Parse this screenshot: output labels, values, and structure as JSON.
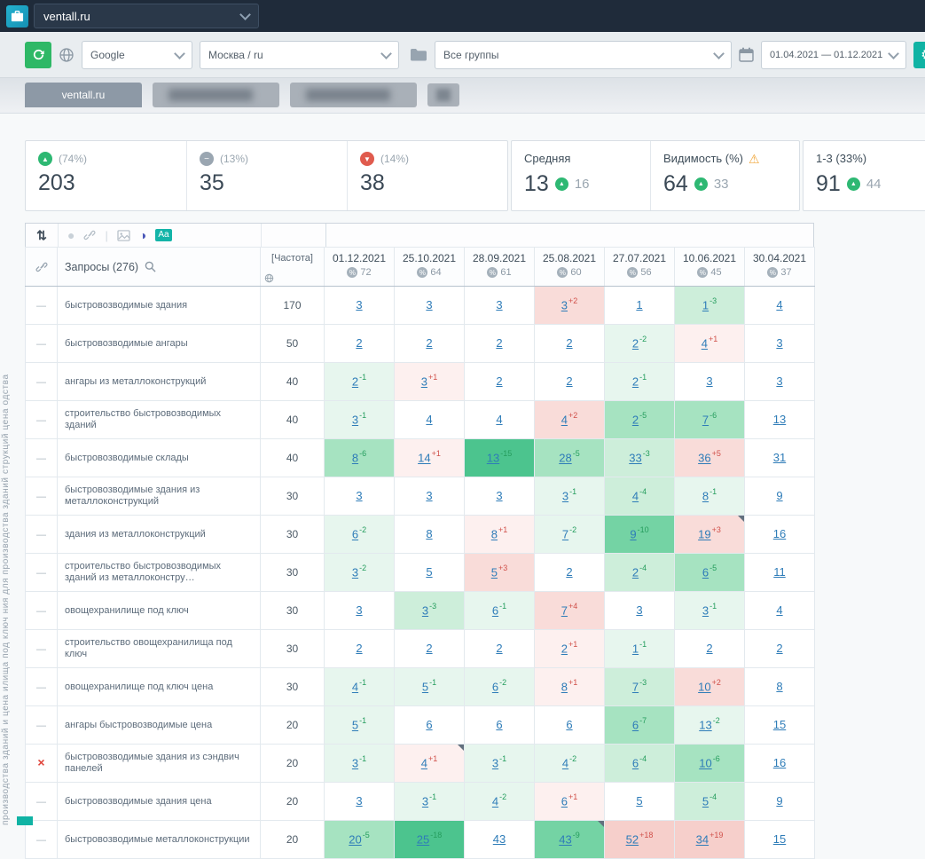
{
  "topbar": {
    "project": "ventall.ru"
  },
  "toolbar": {
    "search_engine": "Google",
    "region": "Москва / ru",
    "groups": "Все группы",
    "date_range": "01.04.2021 — 01.12.2021"
  },
  "tabs": {
    "active": "ventall.ru"
  },
  "icons": {
    "sort": "⇅",
    "circle": "●",
    "divider": "|",
    "half": "◑",
    "aa": "Aa",
    "gear": "⚙",
    "warning": "⚠",
    "percent": "%",
    "up": "▲",
    "down": "▼",
    "flat": "−",
    "handle": "—",
    "removed": "×"
  },
  "colors": {
    "accent_teal": "#10b3a4",
    "refresh_green": "#2eb866",
    "up_green": "#2eb873",
    "down_red": "#e05b4e",
    "flat_gray": "#9aa6b1",
    "link_blue": "#2e7cb8",
    "delta_green": "#259d5d",
    "delta_red": "#d0504a"
  },
  "summary": {
    "cards": [
      {
        "kind": "up",
        "percent": "(74%)",
        "value": "203"
      },
      {
        "kind": "flat",
        "percent": "(13%)",
        "value": "35"
      },
      {
        "kind": "down",
        "percent": "(14%)",
        "value": "38"
      },
      {
        "kind": "metric",
        "label": "Средняя",
        "value": "13",
        "delta": "16"
      },
      {
        "kind": "metric",
        "label": "Видимость (%)",
        "warning": true,
        "value": "64",
        "delta": "33"
      },
      {
        "kind": "metric",
        "label": "1-3 (33%)",
        "value": "91",
        "delta": "44"
      }
    ]
  },
  "table": {
    "queries_header": "Запросы (276)",
    "frequency_header": "[Частота]",
    "columns": [
      {
        "date": "01.12.2021",
        "percent": "72"
      },
      {
        "date": "25.10.2021",
        "percent": "64"
      },
      {
        "date": "28.09.2021",
        "percent": "61"
      },
      {
        "date": "25.08.2021",
        "percent": "60"
      },
      {
        "date": "27.07.2021",
        "percent": "56"
      },
      {
        "date": "10.06.2021",
        "percent": "45"
      },
      {
        "date": "30.04.2021",
        "percent": "37"
      }
    ],
    "rows": [
      {
        "keyword": "быстровозводимые здания",
        "frequency": "170",
        "marker": "dash",
        "cells": [
          {
            "p": "3"
          },
          {
            "p": "3"
          },
          {
            "p": "3"
          },
          {
            "p": "3",
            "d": "+2",
            "bg": "r2"
          },
          {
            "p": "1"
          },
          {
            "p": "1",
            "d": "-3",
            "bg": "g2"
          },
          {
            "p": "4"
          }
        ]
      },
      {
        "keyword": "быстровозводимые ангары",
        "frequency": "50",
        "marker": "dash",
        "cells": [
          {
            "p": "2"
          },
          {
            "p": "2"
          },
          {
            "p": "2"
          },
          {
            "p": "2"
          },
          {
            "p": "2",
            "d": "-2",
            "bg": "g1"
          },
          {
            "p": "4",
            "d": "+1",
            "bg": "r1"
          },
          {
            "p": "3"
          }
        ]
      },
      {
        "keyword": "ангары из металлоконструкций",
        "frequency": "40",
        "marker": "dash",
        "cells": [
          {
            "p": "2",
            "d": "-1",
            "bg": "g1"
          },
          {
            "p": "3",
            "d": "+1",
            "bg": "r1"
          },
          {
            "p": "2"
          },
          {
            "p": "2"
          },
          {
            "p": "2",
            "d": "-1",
            "bg": "g1"
          },
          {
            "p": "3"
          },
          {
            "p": "3"
          }
        ]
      },
      {
        "keyword": "строительство быстровозводимых зданий",
        "frequency": "40",
        "marker": "dash",
        "cells": [
          {
            "p": "3",
            "d": "-1",
            "bg": "g1"
          },
          {
            "p": "4"
          },
          {
            "p": "4"
          },
          {
            "p": "4",
            "d": "+2",
            "bg": "r2"
          },
          {
            "p": "2",
            "d": "-5",
            "bg": "g3"
          },
          {
            "p": "7",
            "d": "-6",
            "bg": "g3"
          },
          {
            "p": "13"
          }
        ]
      },
      {
        "keyword": "быстровозводимые склады",
        "frequency": "40",
        "marker": "dash",
        "cells": [
          {
            "p": "8",
            "d": "-6",
            "bg": "g3"
          },
          {
            "p": "14",
            "d": "+1",
            "bg": "r1"
          },
          {
            "p": "13",
            "d": "-15",
            "bg": "g5"
          },
          {
            "p": "28",
            "d": "-5",
            "bg": "g3"
          },
          {
            "p": "33",
            "d": "-3",
            "bg": "g2"
          },
          {
            "p": "36",
            "d": "+5",
            "bg": "r2"
          },
          {
            "p": "31"
          }
        ]
      },
      {
        "keyword": "быстровозводимые здания из металлоконструкций",
        "frequency": "30",
        "marker": "dash",
        "cells": [
          {
            "p": "3"
          },
          {
            "p": "3"
          },
          {
            "p": "3"
          },
          {
            "p": "3",
            "d": "-1",
            "bg": "g1"
          },
          {
            "p": "4",
            "d": "-4",
            "bg": "g2"
          },
          {
            "p": "8",
            "d": "-1",
            "bg": "g1"
          },
          {
            "p": "9"
          }
        ]
      },
      {
        "keyword": "здания из металлоконструкций",
        "frequency": "30",
        "marker": "dash",
        "cells": [
          {
            "p": "6",
            "d": "-2",
            "bg": "g1"
          },
          {
            "p": "8"
          },
          {
            "p": "8",
            "d": "+1",
            "bg": "r1"
          },
          {
            "p": "7",
            "d": "-2",
            "bg": "g1"
          },
          {
            "p": "9",
            "d": "-10",
            "bg": "g4"
          },
          {
            "p": "19",
            "d": "+3",
            "bg": "r2",
            "corner": true
          },
          {
            "p": "16"
          }
        ]
      },
      {
        "keyword": "строительство быстровозводимых зданий из металлоконстру…",
        "frequency": "30",
        "marker": "dash",
        "cells": [
          {
            "p": "3",
            "d": "-2",
            "bg": "g1"
          },
          {
            "p": "5"
          },
          {
            "p": "5",
            "d": "+3",
            "bg": "r2"
          },
          {
            "p": "2"
          },
          {
            "p": "2",
            "d": "-4",
            "bg": "g2"
          },
          {
            "p": "6",
            "d": "-5",
            "bg": "g3"
          },
          {
            "p": "11"
          }
        ]
      },
      {
        "keyword": "овощехранилище под ключ",
        "frequency": "30",
        "marker": "dash",
        "cells": [
          {
            "p": "3"
          },
          {
            "p": "3",
            "d": "-3",
            "bg": "g2"
          },
          {
            "p": "6",
            "d": "-1",
            "bg": "g1"
          },
          {
            "p": "7",
            "d": "+4",
            "bg": "r2"
          },
          {
            "p": "3"
          },
          {
            "p": "3",
            "d": "-1",
            "bg": "g1"
          },
          {
            "p": "4"
          }
        ]
      },
      {
        "keyword": "строительство овощехранилища под ключ",
        "frequency": "30",
        "marker": "dash",
        "cells": [
          {
            "p": "2"
          },
          {
            "p": "2"
          },
          {
            "p": "2"
          },
          {
            "p": "2",
            "d": "+1",
            "bg": "r1"
          },
          {
            "p": "1",
            "d": "-1",
            "bg": "g1"
          },
          {
            "p": "2"
          },
          {
            "p": "2"
          }
        ]
      },
      {
        "keyword": "овощехранилище под ключ цена",
        "frequency": "30",
        "marker": "dash",
        "cells": [
          {
            "p": "4",
            "d": "-1",
            "bg": "g1"
          },
          {
            "p": "5",
            "d": "-1",
            "bg": "g1"
          },
          {
            "p": "6",
            "d": "-2",
            "bg": "g1"
          },
          {
            "p": "8",
            "d": "+1",
            "bg": "r1"
          },
          {
            "p": "7",
            "d": "-3",
            "bg": "g2"
          },
          {
            "p": "10",
            "d": "+2",
            "bg": "r2"
          },
          {
            "p": "8"
          }
        ]
      },
      {
        "keyword": "ангары быстровозводимые цена",
        "frequency": "20",
        "marker": "dash",
        "cells": [
          {
            "p": "5",
            "d": "-1",
            "bg": "g1"
          },
          {
            "p": "6"
          },
          {
            "p": "6"
          },
          {
            "p": "6"
          },
          {
            "p": "6",
            "d": "-7",
            "bg": "g3"
          },
          {
            "p": "13",
            "d": "-2",
            "bg": "g1"
          },
          {
            "p": "15"
          }
        ]
      },
      {
        "keyword": "быстровозводимые здания из сэндвич панелей",
        "frequency": "20",
        "marker": "x",
        "cells": [
          {
            "p": "3",
            "d": "-1",
            "bg": "g1"
          },
          {
            "p": "4",
            "d": "+1",
            "bg": "r1",
            "corner": true
          },
          {
            "p": "3",
            "d": "-1",
            "bg": "g1"
          },
          {
            "p": "4",
            "d": "-2",
            "bg": "g1"
          },
          {
            "p": "6",
            "d": "-4",
            "bg": "g2"
          },
          {
            "p": "10",
            "d": "-6",
            "bg": "g3"
          },
          {
            "p": "16"
          }
        ]
      },
      {
        "keyword": "быстровозводимые здания цена",
        "frequency": "20",
        "marker": "dash",
        "cells": [
          {
            "p": "3"
          },
          {
            "p": "3",
            "d": "-1",
            "bg": "g1"
          },
          {
            "p": "4",
            "d": "-2",
            "bg": "g1"
          },
          {
            "p": "6",
            "d": "+1",
            "bg": "r1"
          },
          {
            "p": "5"
          },
          {
            "p": "5",
            "d": "-4",
            "bg": "g2"
          },
          {
            "p": "9"
          }
        ]
      },
      {
        "keyword": "быстровозводимые металлоконструкции",
        "frequency": "20",
        "marker": "dash",
        "cells": [
          {
            "p": "20",
            "d": "-5",
            "bg": "g3"
          },
          {
            "p": "25",
            "d": "-18",
            "bg": "g5"
          },
          {
            "p": "43"
          },
          {
            "p": "43",
            "d": "-9",
            "bg": "g4",
            "corner": true
          },
          {
            "p": "52",
            "d": "+18",
            "bg": "r3"
          },
          {
            "p": "34",
            "d": "+19",
            "bg": "r3"
          },
          {
            "p": "15"
          }
        ]
      }
    ]
  },
  "side_text": "производства зданий и цена илища под ключ ния для производства зданий струкций цена одства"
}
